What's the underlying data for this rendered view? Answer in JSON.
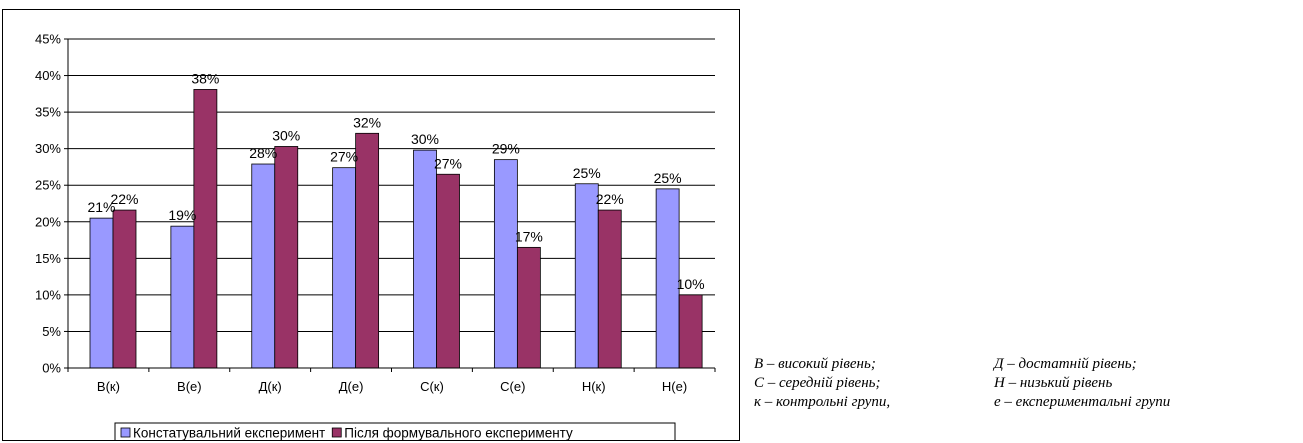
{
  "chart_data": {
    "type": "bar",
    "categories": [
      "В(к)",
      "В(е)",
      "Д(к)",
      "Д(е)",
      "С(к)",
      "С(е)",
      "Н(к)",
      "Н(е)"
    ],
    "series": [
      {
        "name": "Констатувальний експеримент",
        "color": "#9999ff",
        "values": [
          20.5,
          19.4,
          27.9,
          27.4,
          29.8,
          28.5,
          25.2,
          24.5
        ],
        "labels": [
          "21%",
          "19%",
          "28%",
          "27%",
          "30%",
          "29%",
          "25%",
          "25%"
        ]
      },
      {
        "name": "Після формувального експерименту",
        "color": "#993366",
        "values": [
          21.6,
          38.1,
          30.3,
          32.1,
          26.5,
          16.5,
          21.6,
          10.0
        ],
        "labels": [
          "22%",
          "38%",
          "30%",
          "32%",
          "27%",
          "17%",
          "22%",
          "10%"
        ]
      }
    ],
    "yticks": [
      "0%",
      "5%",
      "10%",
      "15%",
      "20%",
      "25%",
      "30%",
      "35%",
      "40%",
      "45%"
    ],
    "ylim": [
      0,
      45
    ],
    "grid": true,
    "legend": "bottom"
  },
  "notes": [
    [
      "В – високий рівень;",
      "Д – достатній рівень;"
    ],
    [
      "С – середній рівень;",
      "Н – низький рівень"
    ],
    [
      "к – контрольні групи,",
      "е – експериментальні групи"
    ]
  ]
}
